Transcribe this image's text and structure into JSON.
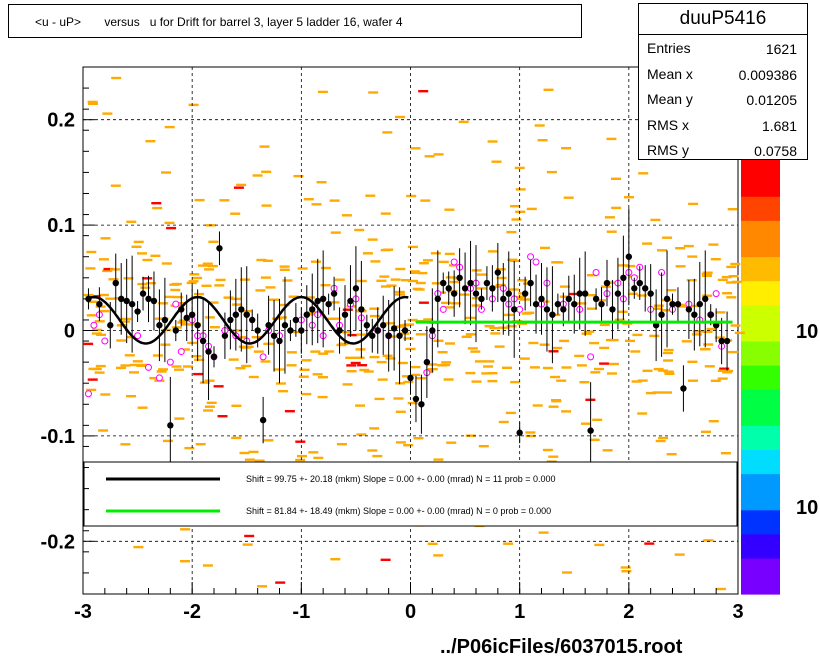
{
  "title": "<u - uP>       versus   u for Drift for barrel 3, layer 5 ladder 16, wafer 4",
  "stats": {
    "name": "duuP5416",
    "rows": [
      {
        "label": "Entries",
        "value": "1621"
      },
      {
        "label": "Mean x",
        "value": "0.009386"
      },
      {
        "label": "Mean y",
        "value": "0.01205"
      },
      {
        "label": "RMS x",
        "value": "1.681"
      },
      {
        "label": "RMS y",
        "value": "0.0758"
      }
    ]
  },
  "footer": "../P06icFiles/6037015.root",
  "legend": [
    {
      "color": "#000000",
      "text": "Shift =    99.75 +- 20.18 (mkm) Slope =     0.00 +- 0.00 (mrad)  N = 11 prob = 0.000"
    },
    {
      "color": "#00ee00",
      "text": "Shift =    81.84 +- 18.49 (mkm) Slope =     0.00 +- 0.00 (mrad)  N = 0 prob = 0.000"
    }
  ],
  "colorbar_labels": [
    "10",
    "10"
  ],
  "chart_data": {
    "type": "scatter",
    "xlim": [
      -3,
      3
    ],
    "ylim": [
      -0.25,
      0.25
    ],
    "xticks": [
      -3,
      -2,
      -1,
      0,
      1,
      2,
      3
    ],
    "yticks": [
      -0.2,
      -0.1,
      0,
      0.1,
      0.2
    ],
    "xtick_labels": [
      "-3",
      "-2",
      "-1",
      "0",
      "1",
      "2",
      "3"
    ],
    "ytick_labels": [
      "-0.2",
      "-0.1",
      "0",
      "0.1",
      "0.2"
    ],
    "grid": true,
    "profile_points": [
      [
        -2.95,
        0.03
      ],
      [
        -2.85,
        0.025
      ],
      [
        -2.75,
        0.005
      ],
      [
        -2.7,
        0.045
      ],
      [
        -2.65,
        0.03
      ],
      [
        -2.6,
        0.028
      ],
      [
        -2.55,
        0.025
      ],
      [
        -2.5,
        0.018
      ],
      [
        -2.45,
        0.035
      ],
      [
        -2.4,
        0.03
      ],
      [
        -2.35,
        0.028
      ],
      [
        -2.3,
        0.005
      ],
      [
        -2.25,
        0.01
      ],
      [
        -2.2,
        -0.09
      ],
      [
        -2.15,
        0.0
      ],
      [
        -2.1,
        0.02
      ],
      [
        -2.05,
        0.012
      ],
      [
        -2.0,
        0.015
      ],
      [
        -1.95,
        0.005
      ],
      [
        -1.9,
        -0.01
      ],
      [
        -1.85,
        -0.02
      ],
      [
        -1.8,
        -0.025
      ],
      [
        -1.75,
        0.078
      ],
      [
        -1.7,
        -0.005
      ],
      [
        -1.65,
        0.01
      ],
      [
        -1.6,
        0.015
      ],
      [
        -1.55,
        0.02
      ],
      [
        -1.5,
        0.015
      ],
      [
        -1.45,
        0.01
      ],
      [
        -1.4,
        0.0
      ],
      [
        -1.35,
        -0.085
      ],
      [
        -1.3,
        0.005
      ],
      [
        -1.25,
        -0.005
      ],
      [
        -1.2,
        -0.01
      ],
      [
        -1.15,
        0.005
      ],
      [
        -1.1,
        0.0
      ],
      [
        -1.05,
        0.01
      ],
      [
        -1.0,
        0.0
      ],
      [
        -0.95,
        0.015
      ],
      [
        -0.9,
        0.02
      ],
      [
        -0.85,
        0.028
      ],
      [
        -0.8,
        0.03
      ],
      [
        -0.75,
        0.025
      ],
      [
        -0.7,
        0.035
      ],
      [
        -0.65,
        0.0
      ],
      [
        -0.6,
        0.015
      ],
      [
        -0.55,
        0.028
      ],
      [
        -0.5,
        0.04
      ],
      [
        -0.45,
        0.02
      ],
      [
        -0.4,
        0.005
      ],
      [
        -0.35,
        -0.005
      ],
      [
        -0.3,
        0.0
      ],
      [
        -0.25,
        0.005
      ],
      [
        -0.2,
        -0.005
      ],
      [
        -0.15,
        0.002
      ],
      [
        -0.1,
        -0.005
      ],
      [
        -0.05,
        0.0
      ],
      [
        0.0,
        -0.045
      ],
      [
        0.05,
        -0.065
      ],
      [
        0.1,
        -0.07
      ],
      [
        0.15,
        -0.03
      ],
      [
        0.2,
        0.0
      ],
      [
        0.25,
        0.03
      ],
      [
        0.3,
        0.045
      ],
      [
        0.35,
        0.04
      ],
      [
        0.4,
        0.035
      ],
      [
        0.45,
        0.05
      ],
      [
        0.5,
        0.04
      ],
      [
        0.55,
        0.045
      ],
      [
        0.6,
        0.035
      ],
      [
        0.65,
        0.03
      ],
      [
        0.7,
        0.045
      ],
      [
        0.75,
        0.04
      ],
      [
        0.8,
        0.055
      ],
      [
        0.85,
        0.03
      ],
      [
        0.9,
        0.035
      ],
      [
        0.95,
        0.02
      ],
      [
        1.0,
        -0.097
      ],
      [
        1.05,
        0.035
      ],
      [
        1.1,
        0.045
      ],
      [
        1.15,
        0.025
      ],
      [
        1.2,
        0.03
      ],
      [
        1.25,
        0.02
      ],
      [
        1.3,
        0.015
      ],
      [
        1.35,
        0.025
      ],
      [
        1.4,
        0.02
      ],
      [
        1.45,
        0.03
      ],
      [
        1.5,
        0.025
      ],
      [
        1.55,
        0.035
      ],
      [
        1.6,
        0.035
      ],
      [
        1.65,
        -0.095
      ],
      [
        1.7,
        0.03
      ],
      [
        1.75,
        0.025
      ],
      [
        1.8,
        0.045
      ],
      [
        1.85,
        0.02
      ],
      [
        1.9,
        0.035
      ],
      [
        1.95,
        0.05
      ],
      [
        2.0,
        0.07
      ],
      [
        2.05,
        0.04
      ],
      [
        2.1,
        0.045
      ],
      [
        2.15,
        0.04
      ],
      [
        2.2,
        0.035
      ],
      [
        2.25,
        0.005
      ],
      [
        2.3,
        0.015
      ],
      [
        2.35,
        0.03
      ],
      [
        2.4,
        0.025
      ],
      [
        2.45,
        0.025
      ],
      [
        2.5,
        -0.055
      ],
      [
        2.55,
        0.02
      ],
      [
        2.6,
        0.015
      ],
      [
        2.65,
        0.025
      ],
      [
        2.7,
        0.03
      ],
      [
        2.75,
        0.015
      ],
      [
        2.8,
        0.005
      ],
      [
        2.85,
        -0.01
      ],
      [
        2.9,
        -0.01
      ]
    ],
    "open_points": [
      [
        -2.95,
        -0.06
      ],
      [
        -2.9,
        0.005
      ],
      [
        -2.85,
        0.015
      ],
      [
        -2.8,
        -0.01
      ],
      [
        -2.5,
        -0.005
      ],
      [
        -2.4,
        -0.035
      ],
      [
        -2.3,
        -0.045
      ],
      [
        -2.2,
        -0.03
      ],
      [
        -2.15,
        0.025
      ],
      [
        -2.1,
        -0.02
      ],
      [
        -2.0,
        0.01
      ],
      [
        -1.95,
        -0.005
      ],
      [
        -1.9,
        -0.005
      ],
      [
        -1.85,
        -0.015
      ],
      [
        -1.8,
        -0.025
      ],
      [
        -1.7,
        0.0
      ],
      [
        -1.6,
        -0.005
      ],
      [
        -1.5,
        -0.01
      ],
      [
        -1.35,
        -0.025
      ],
      [
        -1.3,
        0.0
      ],
      [
        -1.2,
        -0.005
      ],
      [
        -1.0,
        0.01
      ],
      [
        -0.9,
        0.005
      ],
      [
        -0.85,
        0.015
      ],
      [
        -0.8,
        -0.005
      ],
      [
        -0.7,
        0.04
      ],
      [
        -0.65,
        0.005
      ],
      [
        -0.55,
        0.025
      ],
      [
        -0.5,
        0.03
      ],
      [
        -0.45,
        0.012
      ],
      [
        -0.3,
        0.0
      ],
      [
        -0.2,
        -0.005
      ],
      [
        0.15,
        -0.04
      ],
      [
        0.2,
        -0.005
      ],
      [
        0.25,
        0.035
      ],
      [
        0.3,
        0.02
      ],
      [
        0.4,
        0.065
      ],
      [
        0.45,
        0.06
      ],
      [
        0.55,
        0.04
      ],
      [
        0.6,
        0.045
      ],
      [
        0.65,
        0.02
      ],
      [
        0.75,
        0.03
      ],
      [
        0.85,
        0.04
      ],
      [
        0.9,
        0.025
      ],
      [
        0.95,
        0.03
      ],
      [
        1.0,
        0.02
      ],
      [
        1.1,
        0.07
      ],
      [
        1.15,
        0.065
      ],
      [
        1.2,
        0.025
      ],
      [
        1.25,
        0.045
      ],
      [
        1.4,
        0.025
      ],
      [
        1.55,
        0.02
      ],
      [
        1.65,
        -0.025
      ],
      [
        1.7,
        0.055
      ],
      [
        1.8,
        0.035
      ],
      [
        1.9,
        0.045
      ],
      [
        1.95,
        0.03
      ],
      [
        2.0,
        0.055
      ],
      [
        2.05,
        0.05
      ],
      [
        2.1,
        0.06
      ],
      [
        2.2,
        0.02
      ],
      [
        2.3,
        0.055
      ],
      [
        2.4,
        0.02
      ],
      [
        2.55,
        0.025
      ],
      [
        2.65,
        0.01
      ],
      [
        2.75,
        0.015
      ],
      [
        2.8,
        0.035
      ],
      [
        2.85,
        -0.015
      ]
    ],
    "fit_black": {
      "x_range": [
        -2.95,
        -0.02
      ],
      "offset": 0.0097,
      "amplitude": 0.022,
      "period": 0.95
    },
    "fit_green": {
      "x_range": [
        0.05,
        2.95
      ],
      "value": 0.008
    }
  },
  "colors": {
    "scatter": "#ffaa00",
    "open_marker": "#ff00ff",
    "profile": "#000000",
    "red": "#ff0000"
  }
}
